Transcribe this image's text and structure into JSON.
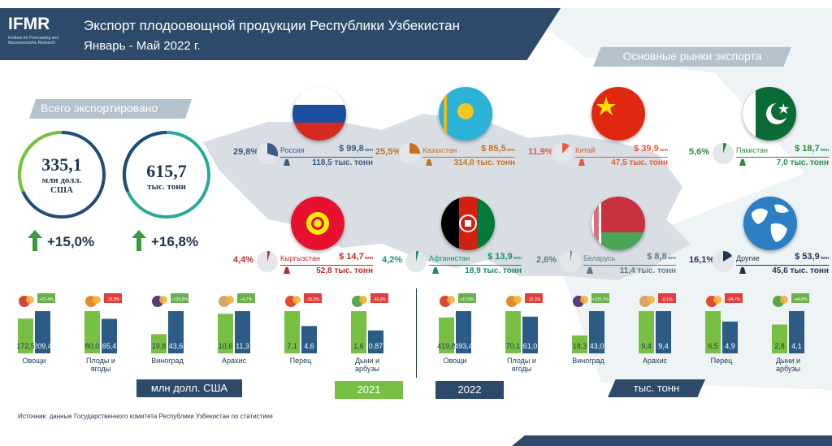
{
  "header": {
    "logo_text": "IFMR",
    "logo_sub": "Institute for Forecasting and Macroeconomic Research",
    "title": "Экспорт плодоовощной продукции Республики Узбекистан",
    "subtitle": "Январь - Май 2022 г."
  },
  "colors": {
    "navy": "#2d4a6a",
    "green": "#78c043",
    "dark_green": "#3a8a3e",
    "blue_bar": "#2c5c85",
    "teal_ring": "#2aa99a",
    "ribbon_gray": "#b3c2cd",
    "positive": "#6ab04c",
    "negative": "#e2403c"
  },
  "totals": {
    "ribbon": "Всего экспортировано",
    "value_usd": "335,1",
    "unit_usd_1": "млн долл.",
    "unit_usd_2": "США",
    "value_tonnes": "615,7",
    "unit_tonnes": "тыс. тонн",
    "growth_usd": "+15,0%",
    "growth_tonnes": "+16,8%"
  },
  "markets": {
    "ribbon": "Основные рынки экспорта",
    "unit_usd": "млн",
    "unit_tonnes": "тыс. тонн",
    "items": [
      {
        "name": "Россия",
        "share": "29,8",
        "share_num": 29.8,
        "usd": "$ 99,8",
        "tonnes": "118,5",
        "color": "#3a5a87",
        "flag": "russia"
      },
      {
        "name": "Казахстан",
        "share": "25,5",
        "share_num": 25.5,
        "usd": "$ 85,5",
        "tonnes": "314,0",
        "color": "#c8701c",
        "flag": "kazakhstan"
      },
      {
        "name": "Китай",
        "share": "11,9",
        "share_num": 11.9,
        "usd": "$ 39,9",
        "tonnes": "47,5",
        "color": "#e5583c",
        "flag": "china"
      },
      {
        "name": "Пакистан",
        "share": "5,6",
        "share_num": 5.6,
        "usd": "$ 18,7",
        "tonnes": "7,0",
        "color": "#2e8b3e",
        "flag": "pakistan"
      },
      {
        "name": "Кыргызстан",
        "share": "4,4",
        "share_num": 4.4,
        "usd": "$ 14,7",
        "tonnes": "52,8",
        "color": "#c0282c",
        "flag": "kyrgyzstan"
      },
      {
        "name": "Афганистан",
        "share": "4,2",
        "share_num": 4.2,
        "usd": "$ 13,9",
        "tonnes": "18,9",
        "color": "#1e8a6e",
        "flag": "afghanistan"
      },
      {
        "name": "Беларусь",
        "share": "2,6",
        "share_num": 2.6,
        "usd": "$ 8,8",
        "tonnes": "11,4",
        "color": "#5d7a8e",
        "flag": "belarus"
      },
      {
        "name": "Другие",
        "share": "16,1",
        "share_num": 16.1,
        "usd": "$ 53,9",
        "tonnes": "45,6",
        "color": "#1e3550",
        "flag": "globe"
      }
    ]
  },
  "chart_data": [
    {
      "type": "bar",
      "title": "",
      "ylabel": "млн долл. США",
      "categories": [
        "Овощи",
        "Плоды и ягоды",
        "Виноград",
        "Арахис",
        "Перец",
        "Дыни и арбузы"
      ],
      "labels": [
        [
          "Овощи"
        ],
        [
          "Плоды и",
          "ягоды"
        ],
        [
          "Виноград"
        ],
        [
          "Арахис"
        ],
        [
          "Перец"
        ],
        [
          "Дыни и",
          "арбузы"
        ]
      ],
      "series": [
        {
          "name": "2021",
          "values": [
            172.5,
            80.0,
            19.8,
            10.6,
            7.1,
            1.6
          ],
          "labels": [
            "172,5",
            "80,0",
            "19,8",
            "10,6",
            "7,1",
            "1,6"
          ]
        },
        {
          "name": "2022",
          "values": [
            209.4,
            65.4,
            43.6,
            11.3,
            4.6,
            0.87
          ],
          "labels": [
            "209,4",
            "65,4",
            "43,6",
            "11,3",
            "4,6",
            "0,87"
          ]
        }
      ],
      "changes": [
        "+21,4%",
        "-18,3%",
        "+120,9%",
        "+6,7%",
        "-35,0%",
        "-46,0%"
      ],
      "changes_num": [
        21.4,
        -18.3,
        120.9,
        6.7,
        -35.0,
        -46.0
      ]
    },
    {
      "type": "bar",
      "title": "",
      "ylabel": "тыс. тонн",
      "categories": [
        "Овощи",
        "Плоды и ягоды",
        "Виноград",
        "Арахис",
        "Перец",
        "Дыни и арбузы"
      ],
      "labels": [
        [
          "Овощи"
        ],
        [
          "Плоды и",
          "ягоды"
        ],
        [
          "Виноград"
        ],
        [
          "Арахис"
        ],
        [
          "Перец"
        ],
        [
          "Дыни и",
          "арбузы"
        ]
      ],
      "series": [
        {
          "name": "2021",
          "values": [
            419.8,
            70.1,
            18.3,
            9.4,
            6.5,
            2.8
          ],
          "labels": [
            "419,8",
            "70,1",
            "18,3",
            "9,4",
            "6,5",
            "2,8"
          ]
        },
        {
          "name": "2022",
          "values": [
            493.4,
            61.0,
            43.0,
            9.4,
            4.9,
            4.1
          ],
          "labels": [
            "493,4",
            "61,0",
            "43,0",
            "9,4",
            "4,9",
            "4,1"
          ]
        }
      ],
      "changes": [
        "+17,5%",
        "-13,1%",
        "+135,1%",
        "-0,1%",
        "-24,7%",
        "+44,8%"
      ],
      "changes_num": [
        17.5,
        -13.1,
        135.1,
        -0.1,
        -24.7,
        44.8
      ]
    }
  ],
  "footer": {
    "tag_usd": "млн долл. США",
    "tag_2021": "2021",
    "tag_2022": "2022",
    "tag_tonnes": "тыс. тонн",
    "source": "Источник: данные Государственного комитета Республики Узбекистан по статистике"
  }
}
